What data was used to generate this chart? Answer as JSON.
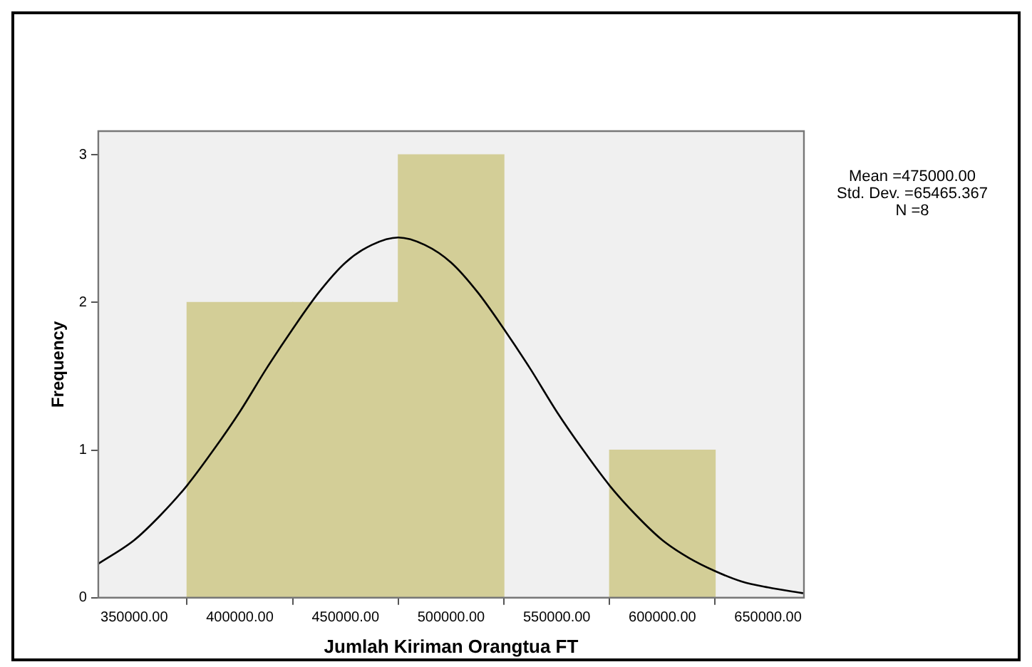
{
  "chart_data": {
    "type": "histogram",
    "xlabel": "Jumlah Kiriman Orangtua FT",
    "ylabel": "Frequency",
    "bins": [
      375000,
      425000,
      475000,
      525000,
      575000,
      625000
    ],
    "values": [
      2,
      2,
      3,
      0,
      1
    ],
    "color": "#d3ce97",
    "series": [
      {
        "type": "line",
        "color": "#000000",
        "x": [
          333000,
          350000,
          362500,
          375000,
          387500,
          400000,
          412500,
          425000,
          437500,
          450000,
          462500,
          475000,
          487500,
          500000,
          512500,
          525000,
          537500,
          550000,
          562500,
          575000,
          587500,
          600000,
          612500,
          625000,
          637500,
          650000,
          667000
        ],
        "values": [
          0.23,
          0.39,
          0.56,
          0.76,
          1.0,
          1.26,
          1.55,
          1.82,
          2.07,
          2.27,
          2.39,
          2.44,
          2.39,
          2.27,
          2.07,
          1.82,
          1.55,
          1.26,
          1.0,
          0.76,
          0.56,
          0.39,
          0.27,
          0.18,
          0.11,
          0.07,
          0.03
        ]
      }
    ],
    "xlim": [
      333000,
      667000
    ],
    "xticks": [
      {
        "value": 350000,
        "label": "350000.00"
      },
      {
        "value": 400000,
        "label": "400000.00"
      },
      {
        "value": 450000,
        "label": "450000.00"
      },
      {
        "value": 500000,
        "label": "500000.00"
      },
      {
        "value": 550000,
        "label": "550000.00"
      },
      {
        "value": 600000,
        "label": "600000.00"
      },
      {
        "value": 650000,
        "label": "650000.00"
      }
    ],
    "ylim": [
      0,
      3.16
    ],
    "yticks": [
      0,
      1,
      2,
      3
    ],
    "grid": false,
    "legend": false,
    "marker": "none",
    "annotations": [
      "Mean =475000.00",
      "Std. Dev. =65465.367",
      "N =8"
    ]
  }
}
